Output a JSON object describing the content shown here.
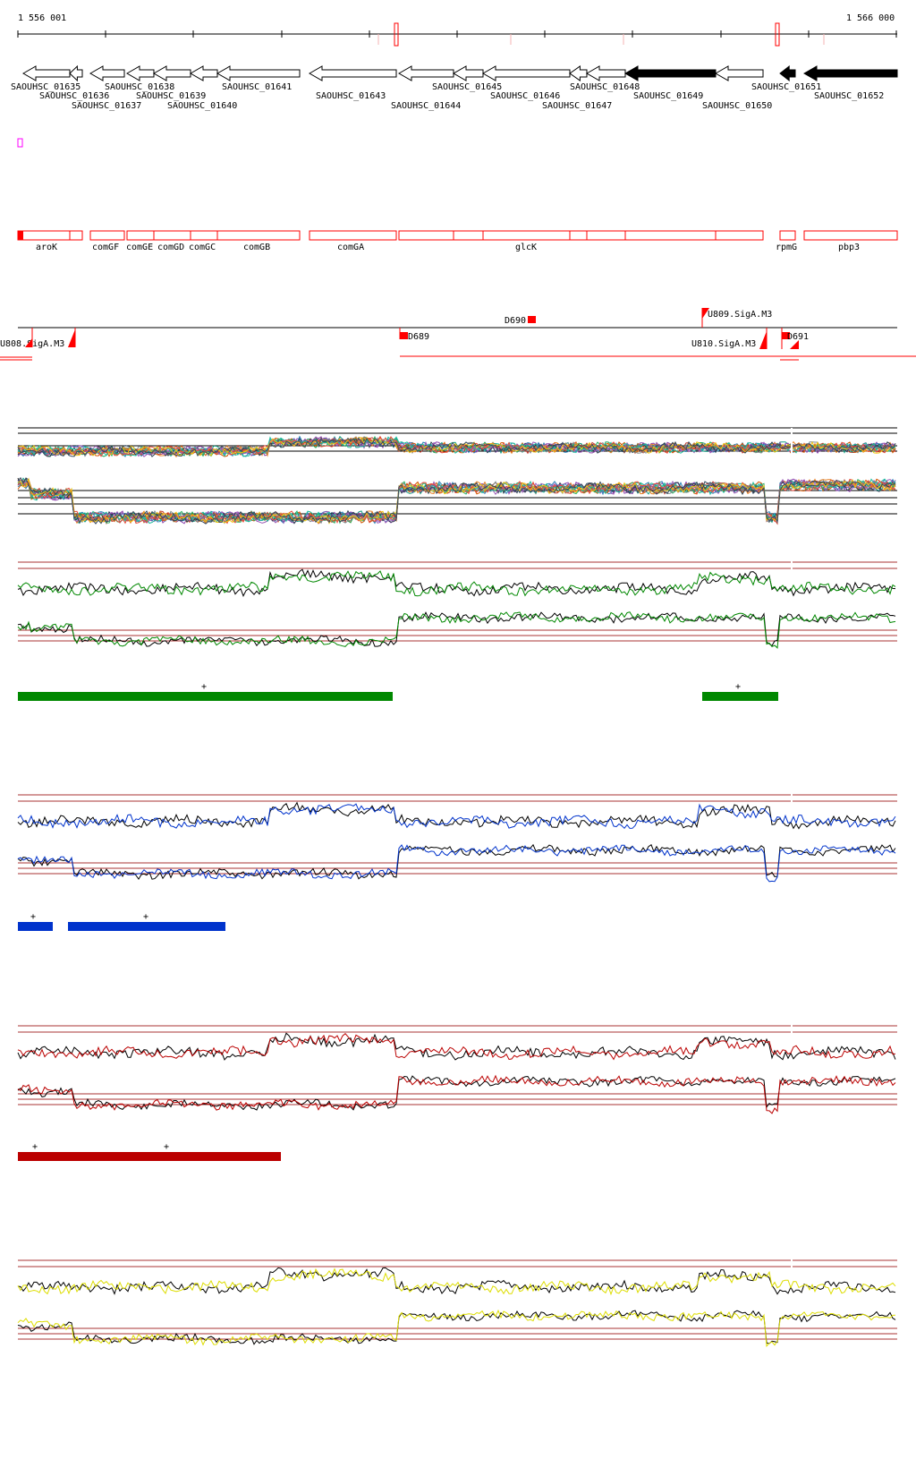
{
  "coords": {
    "start": "1 556 001",
    "end": "1 566 000"
  },
  "colors": {
    "gene_fwd_fill": "#ffffff",
    "gene_highlight_fill": "#000000",
    "red": "#ff0000",
    "darkred": "#aa0000",
    "magenta": "#ff00ff",
    "green": "#008800",
    "blue": "#0033cc",
    "crimson": "#bb0000",
    "yellow": "#dddd00",
    "guide": "#aa3333"
  },
  "gene_labels": [
    "SAOUHSC_01635",
    "SAOUHSC_01636",
    "SAOUHSC_01637",
    "SAOUHSC_01638",
    "SAOUHSC_01639",
    "SAOUHSC_01640",
    "SAOUHSC_01641",
    "SAOUHSC_01643",
    "SAOUHSC_01644",
    "SAOUHSC_01645",
    "SAOUHSC_01646",
    "SAOUHSC_01647",
    "SAOUHSC_01648",
    "SAOUHSC_01649",
    "SAOUHSC_01650",
    "SAOUHSC_01651",
    "SAOUHSC_01652"
  ],
  "name_labels": [
    "aroK",
    "comGF",
    "comGE",
    "comGD",
    "comGC",
    "comGB",
    "comGA",
    "glcK",
    "rpmG",
    "pbp3"
  ],
  "feature_labels": {
    "d690": "D690",
    "u809": "U809.SigA.M3",
    "left_sig": "U808.SigA.M3",
    "d689": "D689",
    "u810": "U810.SigA.M3",
    "d691": "D691"
  },
  "segments": [
    {
      "track": "green",
      "sign": "+"
    },
    {
      "track": "green",
      "sign": "+"
    },
    {
      "track": "blue",
      "sign": "+"
    },
    {
      "track": "blue",
      "sign": "+"
    },
    {
      "track": "red",
      "sign": "+"
    },
    {
      "track": "red",
      "sign": "+"
    }
  ]
}
